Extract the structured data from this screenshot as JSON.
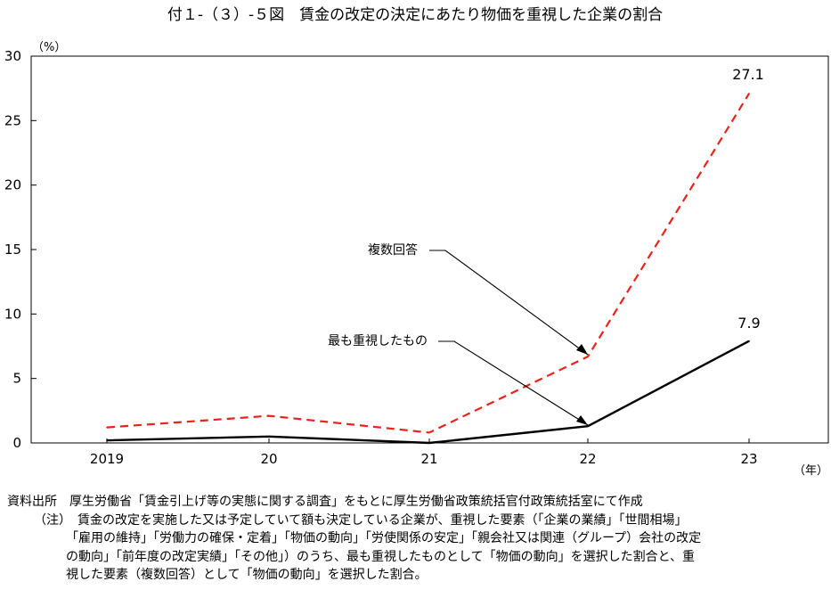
{
  "chart_data": {
    "type": "line",
    "title": "付１-（３）-５図　賃金の改定の決定にあたり物価を重視した企業の割合",
    "ylabel_unit": "（%）",
    "xlabel_unit": "（年）",
    "ylim": [
      0,
      30
    ],
    "yticks": [
      "0",
      "5",
      "10",
      "15",
      "20",
      "25",
      "30"
    ],
    "categories": [
      "2019",
      "20",
      "21",
      "22",
      "23"
    ],
    "series": [
      {
        "name": "複数回答",
        "values": [
          1.2,
          2.1,
          0.8,
          6.7,
          27.1
        ],
        "color": "#e8231c",
        "dash": true
      },
      {
        "name": "最も重視したもの",
        "values": [
          0.2,
          0.5,
          0.0,
          1.3,
          7.9
        ],
        "color": "#000000",
        "dash": false
      }
    ],
    "data_labels": {
      "d0": "27.1",
      "d1": "7.9"
    },
    "grid": false
  },
  "notes": {
    "source": "資料出所　厚生労働省「賃金引上げ等の実態に関する調査」をもとに厚生労働省政策統括官付政策統括室にて作成",
    "note_1": "（注）　賃金の改定を実施した又は予定していて額も決定している企業が、重視した要素（「企業の業績」「世間相場」",
    "note_2": "「雇用の維持」「労働力の確保・定着」「物価の動向」「労使関係の安定」「親会社又は関連（グループ）会社の改定",
    "note_3": "の動向」「前年度の改定実績」「その他」）のうち、最も重視したものとして「物価の動向」を選択した割合と、重",
    "note_4": "視した要素（複数回答）として「物価の動向」を選択した割合。"
  }
}
